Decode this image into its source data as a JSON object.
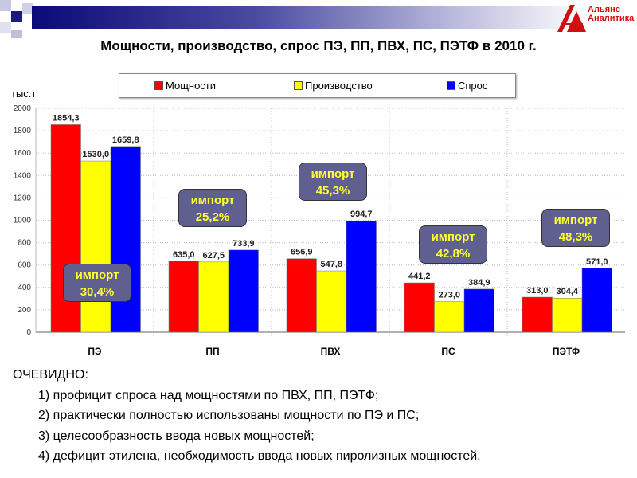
{
  "header": {
    "logo_line1": "Альянс",
    "logo_line2": "Аналитика"
  },
  "chart_data": {
    "type": "bar",
    "title": "Мощности, производство, спрос ПЭ, ПП, ПВХ, ПС, ПЭТФ в 2010 г.",
    "ylabel": "тыс.т",
    "xlabel": "",
    "ylim": [
      0,
      2000
    ],
    "yticks": [
      0,
      200,
      400,
      600,
      800,
      1000,
      1200,
      1400,
      1600,
      1800,
      2000
    ],
    "grid": true,
    "legend_position": "top",
    "categories": [
      "ПЭ",
      "ПП",
      "ПВХ",
      "ПС",
      "ПЭТФ"
    ],
    "series": [
      {
        "name": "Мощности",
        "color": "#ff0000",
        "values": [
          1854.3,
          635.0,
          656.9,
          441.2,
          313.0
        ],
        "labels": [
          "1854,3",
          "635,0",
          "656,9",
          "441,2",
          "313,0"
        ]
      },
      {
        "name": "Производство",
        "color": "#ffff00",
        "values": [
          1530.0,
          627.5,
          547.8,
          273.0,
          304.4
        ],
        "labels": [
          "1530,0",
          "627,5",
          "547,8",
          "273,0",
          "304,4"
        ]
      },
      {
        "name": "Спрос",
        "color": "#0000ff",
        "values": [
          1659.8,
          733.9,
          994.7,
          384.9,
          571.0
        ],
        "labels": [
          "1659,8",
          "733,9",
          "994,7",
          "384,9",
          "571,0"
        ]
      }
    ],
    "annotations": [
      {
        "category": "ПЭ",
        "label": "импорт",
        "value": "30,4%"
      },
      {
        "category": "ПП",
        "label": "импорт",
        "value": "25,2%"
      },
      {
        "category": "ПВХ",
        "label": "импорт",
        "value": "45,3%"
      },
      {
        "category": "ПС",
        "label": "импорт",
        "value": "42,8%"
      },
      {
        "category": "ПЭТФ",
        "label": "импорт",
        "value": "48,3%"
      }
    ]
  },
  "notes": {
    "heading": "ОЧЕВИДНО:",
    "items": [
      "1) профицит спроса над мощностями по ПВХ, ПП, ПЭТФ;",
      "2) практически полностью использованы мощности по ПЭ и ПС;",
      "3) целесообразность ввода новых мощностей;",
      "4) дефицит этилена, необходимость ввода новых пиролизных мощностей."
    ]
  }
}
